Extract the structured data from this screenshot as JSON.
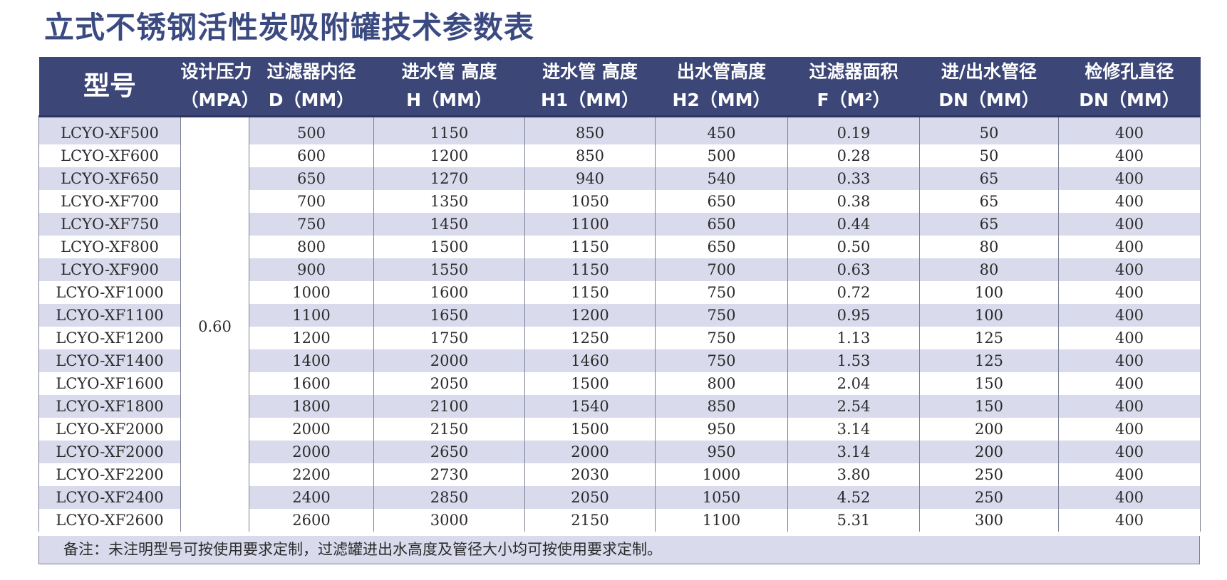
{
  "title": "立式不锈钢活性炭吸附罐技术参数表",
  "colors": {
    "header_bg": "#3c4677",
    "title": "#3b4b82",
    "stripe": "#d9dbed"
  },
  "headers": [
    {
      "line1": "型号",
      "line2": ""
    },
    {
      "line1": "设计压力",
      "line2": "（MPA）"
    },
    {
      "line1": "过滤器内径",
      "line2": "D（MM）"
    },
    {
      "line1": "进水管 高度",
      "line2": "H（MM）"
    },
    {
      "line1": "进水管 高度",
      "line2": "H1（MM）"
    },
    {
      "line1": "出水管高度",
      "line2": "H2（MM）"
    },
    {
      "line1": "过滤器面积",
      "line2": "F（M²）"
    },
    {
      "line1": "进/出水管径",
      "line2": "DN（MM）"
    },
    {
      "line1": "检修孔直径",
      "line2": "DN（MM）"
    }
  ],
  "pressure": "0.60",
  "rows": [
    {
      "model": "LCYO-XF500",
      "d": "500",
      "h": "1150",
      "h1": "850",
      "h2": "450",
      "f": "0.19",
      "dn": "50",
      "dn2": "400"
    },
    {
      "model": "LCYO-XF600",
      "d": "600",
      "h": "1200",
      "h1": "850",
      "h2": "500",
      "f": "0.28",
      "dn": "50",
      "dn2": "400"
    },
    {
      "model": "LCYO-XF650",
      "d": "650",
      "h": "1270",
      "h1": "940",
      "h2": "540",
      "f": "0.33",
      "dn": "65",
      "dn2": "400"
    },
    {
      "model": "LCYO-XF700",
      "d": "700",
      "h": "1350",
      "h1": "1050",
      "h2": "650",
      "f": "0.38",
      "dn": "65",
      "dn2": "400"
    },
    {
      "model": "LCYO-XF750",
      "d": "750",
      "h": "1450",
      "h1": "1100",
      "h2": "650",
      "f": "0.44",
      "dn": "65",
      "dn2": "400"
    },
    {
      "model": "LCYO-XF800",
      "d": "800",
      "h": "1500",
      "h1": "1150",
      "h2": "650",
      "f": "0.50",
      "dn": "80",
      "dn2": "400"
    },
    {
      "model": "LCYO-XF900",
      "d": "900",
      "h": "1550",
      "h1": "1150",
      "h2": "700",
      "f": "0.63",
      "dn": "80",
      "dn2": "400"
    },
    {
      "model": "LCYO-XF1000",
      "d": "1000",
      "h": "1600",
      "h1": "1150",
      "h2": "750",
      "f": "0.72",
      "dn": "100",
      "dn2": "400"
    },
    {
      "model": "LCYO-XF1100",
      "d": "1100",
      "h": "1650",
      "h1": "1200",
      "h2": "750",
      "f": "0.95",
      "dn": "100",
      "dn2": "400"
    },
    {
      "model": "LCYO-XF1200",
      "d": "1200",
      "h": "1750",
      "h1": "1250",
      "h2": "750",
      "f": "1.13",
      "dn": "125",
      "dn2": "400"
    },
    {
      "model": "LCYO-XF1400",
      "d": "1400",
      "h": "2000",
      "h1": "1460",
      "h2": "750",
      "f": "1.53",
      "dn": "125",
      "dn2": "400"
    },
    {
      "model": "LCYO-XF1600",
      "d": "1600",
      "h": "2050",
      "h1": "1500",
      "h2": "800",
      "f": "2.04",
      "dn": "150",
      "dn2": "400"
    },
    {
      "model": "LCYO-XF1800",
      "d": "1800",
      "h": "2100",
      "h1": "1540",
      "h2": "850",
      "f": "2.54",
      "dn": "150",
      "dn2": "400"
    },
    {
      "model": "LCYO-XF2000",
      "d": "2000",
      "h": "2150",
      "h1": "1500",
      "h2": "950",
      "f": "3.14",
      "dn": "200",
      "dn2": "400"
    },
    {
      "model": "LCYO-XF2000",
      "d": "2000",
      "h": "2650",
      "h1": "2000",
      "h2": "950",
      "f": "3.14",
      "dn": "200",
      "dn2": "400"
    },
    {
      "model": "LCYO-XF2200",
      "d": "2200",
      "h": "2730",
      "h1": "2030",
      "h2": "1000",
      "f": "3.80",
      "dn": "250",
      "dn2": "400"
    },
    {
      "model": "LCYO-XF2400",
      "d": "2400",
      "h": "2850",
      "h1": "2050",
      "h2": "1050",
      "f": "4.52",
      "dn": "250",
      "dn2": "400"
    },
    {
      "model": "LCYO-XF2600",
      "d": "2600",
      "h": "3000",
      "h1": "2150",
      "h2": "1100",
      "f": "5.31",
      "dn": "300",
      "dn2": "400"
    }
  ],
  "note": "备注：未注明型号可按使用要求定制，过滤罐进出水高度及管径大小均可按使用要求定制。"
}
